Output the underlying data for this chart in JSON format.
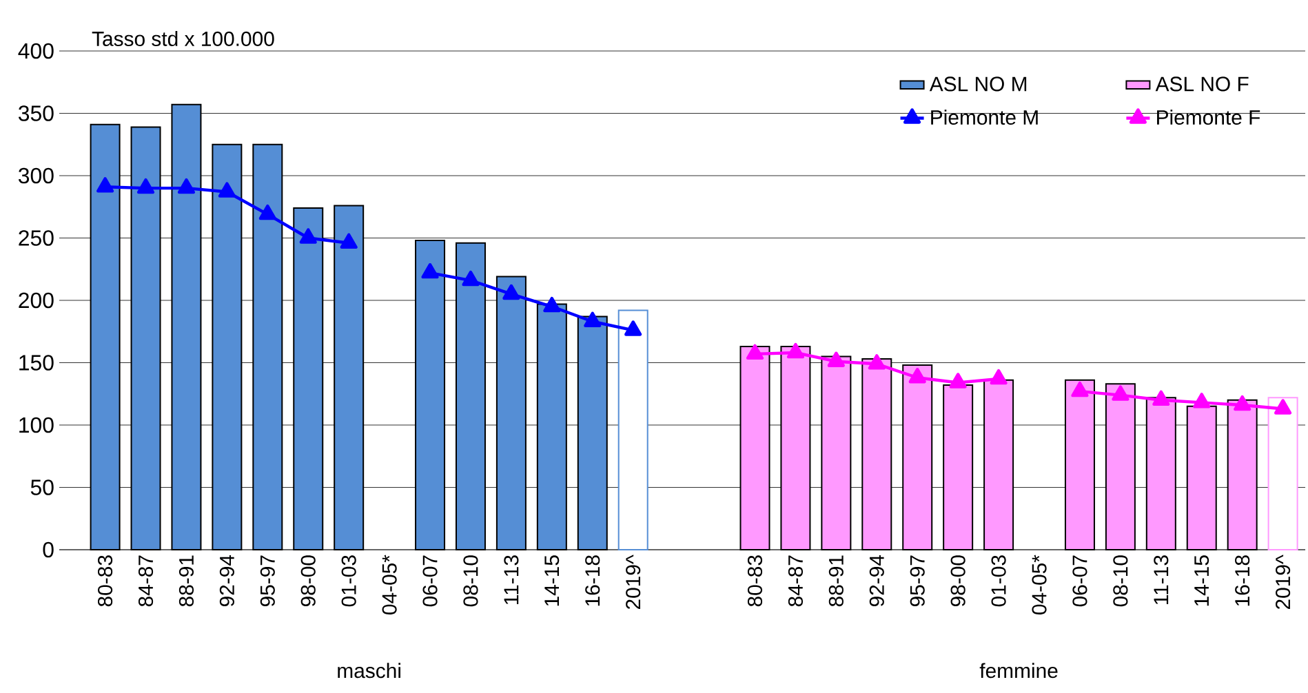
{
  "chart_data": {
    "type": "bar",
    "ylabel": "Tasso std x 100.000",
    "categories": [
      "80-83",
      "84-87",
      "88-91",
      "92-94",
      "95-97",
      "98-00",
      "01-03",
      "04-05*",
      "06-07",
      "08-10",
      "11-13",
      "14-15",
      "16-18",
      "2019^",
      null,
      null,
      "80-83",
      "84-87",
      "88-91",
      "92-94",
      "95-97",
      "98-00",
      "01-03",
      "04-05*",
      "06-07",
      "08-10",
      "11-13",
      "14-15",
      "16-18",
      "2019^"
    ],
    "series": [
      {
        "name": "ASL NO M",
        "color": "#558ed5",
        "values": [
          341,
          339,
          357,
          325,
          325,
          274,
          276,
          null,
          248,
          246,
          219,
          197,
          187,
          192,
          null,
          null,
          null,
          null,
          null,
          null,
          null,
          null,
          null,
          null,
          null,
          null,
          null,
          null,
          null,
          null
        ],
        "colors": [
          "#558ed5",
          "#558ed5",
          "#558ed5",
          "#558ed5",
          "#558ed5",
          "#558ed5",
          "#558ed5",
          null,
          "#558ed5",
          "#558ed5",
          "#558ed5",
          "#558ed5",
          "#558ed5",
          "#ffffff",
          null,
          null,
          null,
          null,
          null,
          null,
          null,
          null,
          null,
          null,
          null,
          null,
          null,
          null,
          null,
          null
        ]
      },
      {
        "name": "ASL NO F",
        "color": "#ff99ff",
        "values": [
          null,
          null,
          null,
          null,
          null,
          null,
          null,
          null,
          null,
          null,
          null,
          null,
          null,
          null,
          null,
          null,
          163,
          163,
          155,
          153,
          148,
          132,
          136,
          null,
          136,
          133,
          122,
          115,
          120,
          122
        ],
        "colors": [
          null,
          null,
          null,
          null,
          null,
          null,
          null,
          null,
          null,
          null,
          null,
          null,
          null,
          null,
          null,
          null,
          "#ff99ff",
          "#ff99ff",
          "#ff99ff",
          "#ff99ff",
          "#ff99ff",
          "#ff99ff",
          "#ff99ff",
          null,
          "#ff99ff",
          "#ff99ff",
          "#ff99ff",
          "#ff99ff",
          "#ff99ff",
          "#ffffff"
        ]
      },
      {
        "name": "Piemonte M",
        "type": "line",
        "color": "#0000ff",
        "values": [
          291,
          290,
          290,
          287,
          269,
          250,
          246,
          null,
          222,
          216,
          205,
          195,
          183,
          176,
          null,
          null,
          null,
          null,
          null,
          null,
          null,
          null,
          null,
          null,
          null,
          null,
          null,
          null,
          null,
          null
        ]
      },
      {
        "name": "Piemonte F",
        "type": "line",
        "color": "#ff00ff",
        "values": [
          null,
          null,
          null,
          null,
          null,
          null,
          null,
          null,
          null,
          null,
          null,
          null,
          null,
          null,
          null,
          null,
          157,
          158,
          151,
          149,
          138,
          134,
          137,
          null,
          127,
          124,
          120,
          118,
          116,
          113
        ]
      }
    ],
    "ylim": [
      0,
      400
    ],
    "yticks": [
      0,
      50,
      100,
      150,
      200,
      250,
      300,
      350,
      400
    ],
    "grid": "y",
    "legend": "top right",
    "marker": "triangle",
    "line_style": "solid",
    "annotations": [
      "maschi",
      "femmine"
    ]
  }
}
